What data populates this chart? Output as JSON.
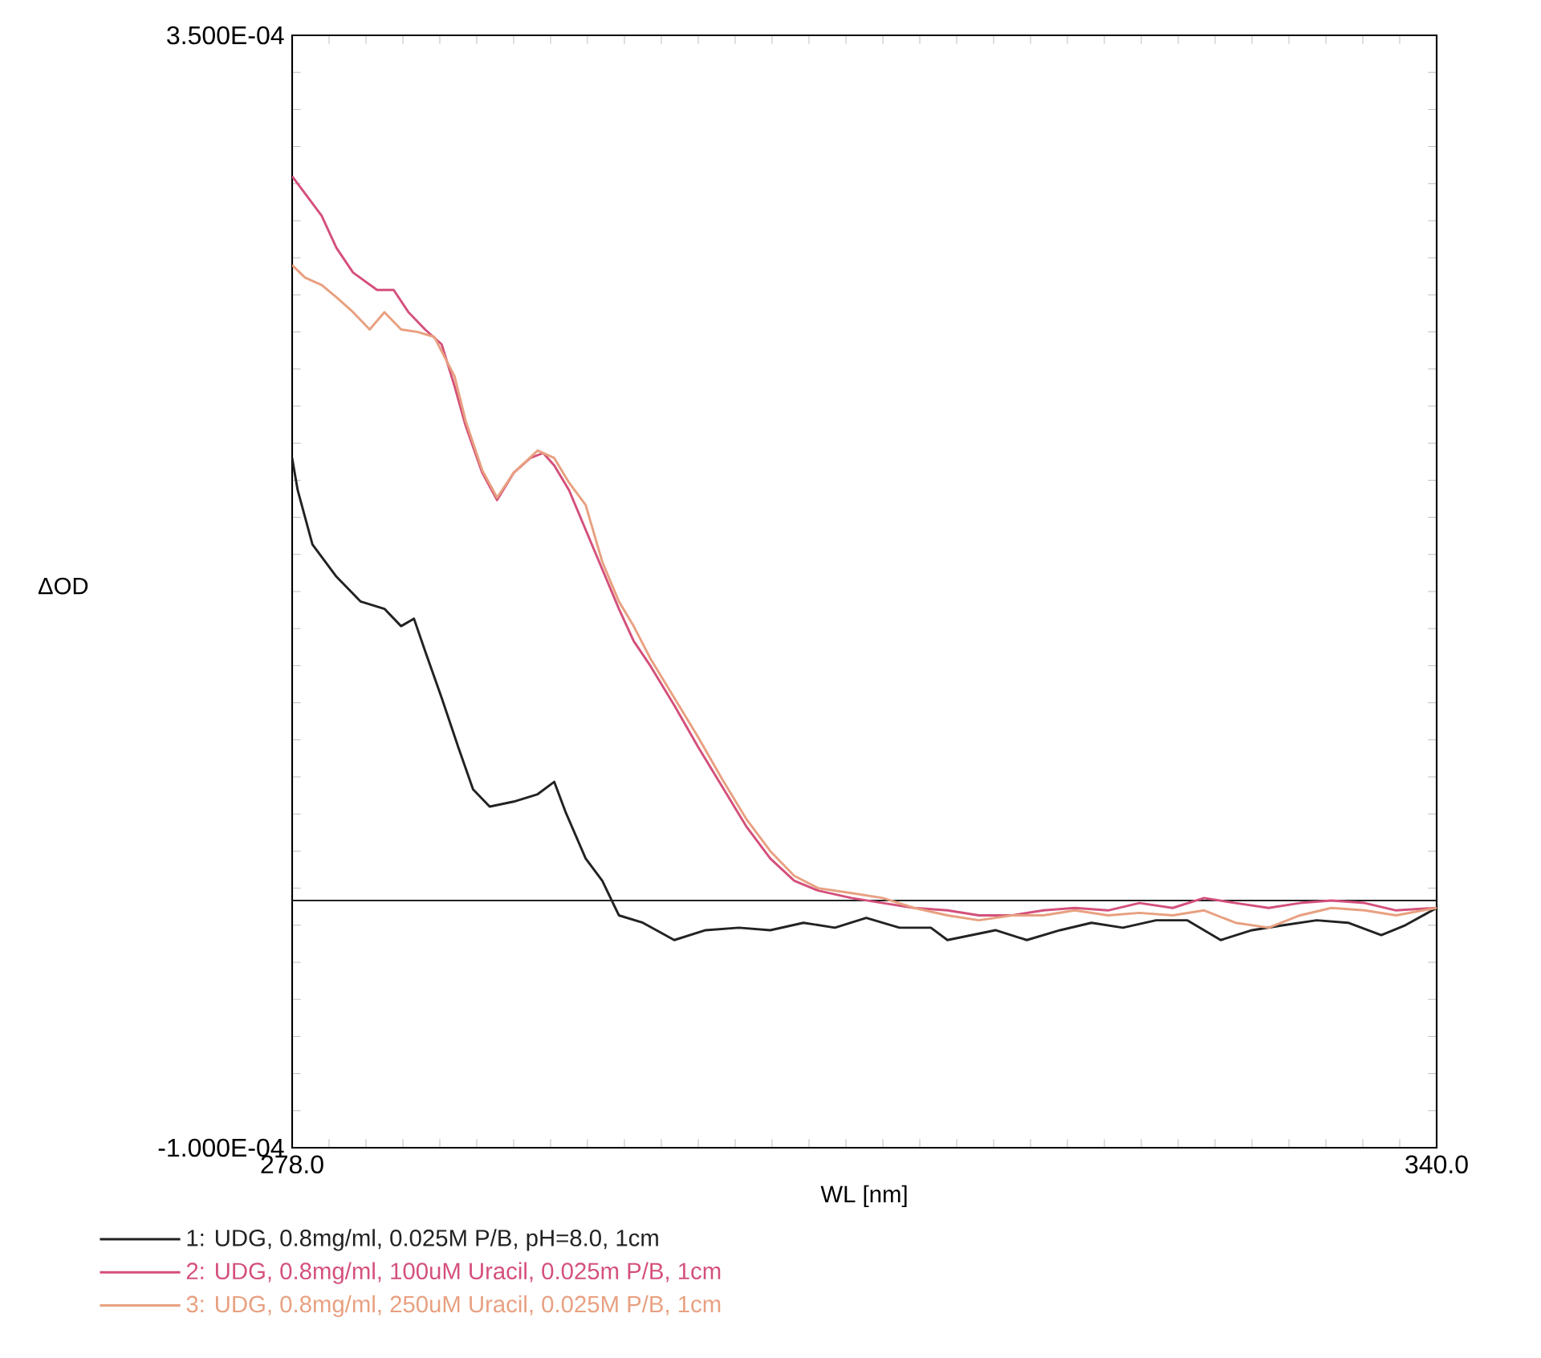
{
  "chart_data": {
    "type": "line",
    "xlabel": "WL [nm]",
    "ylabel": "ΔOD",
    "xlim": [
      278,
      340
    ],
    "ylim": [
      -0.0001,
      0.00035
    ],
    "xticks": [
      {
        "value": 278,
        "label": "278.0"
      },
      {
        "value": 340,
        "label": "340.0"
      }
    ],
    "yticks": [
      {
        "value": -0.0001,
        "label": "-1.000E-04"
      },
      {
        "value": 0.00035,
        "label": "3.500E-04"
      }
    ],
    "legend": "bottom left",
    "ref_lines": [
      {
        "axis": "y",
        "value": 0,
        "color": "#222222"
      }
    ],
    "series": [
      {
        "name": "1: UDG, 0.8mg/ml, 0.025M P/B, pH=8.0, 1cm",
        "color": "#222222",
        "x": [
          278.0,
          278.3,
          279.1,
          280.4,
          281.7,
          283.0,
          283.9,
          284.6,
          285.2,
          286.1,
          287.0,
          287.8,
          288.7,
          290.0,
          291.3,
          292.2,
          292.8,
          293.9,
          294.8,
          295.7,
          297.0,
          298.7,
          300.4,
          302.2,
          303.9,
          305.7,
          307.4,
          309.1,
          310.9,
          312.6,
          313.5,
          316.1,
          317.8,
          319.6,
          321.3,
          323.0,
          324.8,
          326.5,
          328.3,
          330.0,
          331.7,
          333.5,
          335.2,
          337.0,
          338.3,
          340.0
        ],
        "values": [
          0.000179,
          0.000166,
          0.000144,
          0.000131,
          0.000121,
          0.000118,
          0.000111,
          0.000114,
          0.000101,
          8.2e-05,
          6.2e-05,
          4.5e-05,
          3.8e-05,
          4e-05,
          4.3e-05,
          4.8e-05,
          3.6e-05,
          1.7e-05,
          8e-06,
          -6e-06,
          -9e-06,
          -1.6e-05,
          -1.2e-05,
          -1.1e-05,
          -1.2e-05,
          -9e-06,
          -1.1e-05,
          -7e-06,
          -1.1e-05,
          -1.1e-05,
          -1.6e-05,
          -1.2e-05,
          -1.6e-05,
          -1.2e-05,
          -9e-06,
          -1.1e-05,
          -8e-06,
          -8e-06,
          -1.6e-05,
          -1.2e-05,
          -1e-05,
          -8e-06,
          -9e-06,
          -1.4e-05,
          -1e-05,
          -3e-06
        ]
      },
      {
        "name": "2: UDG, 0.8mg/ml, 100uM Uracil, 0.025m P/B, 1cm",
        "color": "#d4507a",
        "x": [
          278.0,
          278.7,
          279.6,
          280.4,
          281.3,
          282.6,
          283.5,
          284.3,
          285.2,
          286.1,
          286.8,
          287.4,
          288.3,
          289.1,
          290.0,
          290.9,
          291.6,
          292.2,
          293.0,
          293.9,
          294.8,
          295.7,
          296.5,
          297.4,
          298.7,
          300.0,
          301.3,
          302.6,
          303.9,
          305.2,
          306.5,
          308.3,
          310.0,
          311.7,
          313.5,
          315.2,
          317.0,
          318.7,
          320.4,
          322.2,
          323.9,
          325.7,
          327.4,
          329.1,
          330.9,
          332.6,
          334.3,
          336.1,
          337.8,
          340.0
        ],
        "values": [
          0.000293,
          0.000286,
          0.000277,
          0.000264,
          0.000254,
          0.000247,
          0.000247,
          0.000238,
          0.000231,
          0.000225,
          0.000208,
          0.000192,
          0.000173,
          0.000162,
          0.000173,
          0.000179,
          0.000181,
          0.000176,
          0.000166,
          0.00015,
          0.000134,
          0.000118,
          0.000105,
          9.5e-05,
          7.9e-05,
          6.2e-05,
          4.6e-05,
          3e-05,
          1.7e-05,
          8e-06,
          4e-06,
          1e-06,
          -1e-06,
          -3e-06,
          -4e-06,
          -6e-06,
          -6e-06,
          -4e-06,
          -3e-06,
          -4e-06,
          -1e-06,
          -3e-06,
          1e-06,
          -1e-06,
          -3e-06,
          -1e-06,
          0.0,
          -1e-06,
          -4e-06,
          -3e-06
        ]
      },
      {
        "name": "3: UDG, 0.8mg/ml, 250uM Uracil, 0.025M P/B, 1cm",
        "color": "#e8a080",
        "x": [
          278.0,
          278.7,
          279.6,
          280.4,
          281.3,
          282.2,
          283.0,
          283.9,
          284.8,
          285.7,
          286.8,
          287.4,
          288.3,
          289.1,
          290.0,
          291.3,
          292.2,
          293.0,
          293.9,
          294.8,
          295.7,
          296.5,
          297.4,
          298.7,
          300.0,
          301.3,
          302.6,
          303.9,
          305.2,
          306.5,
          308.3,
          310.0,
          311.7,
          313.5,
          315.2,
          317.0,
          318.7,
          320.4,
          322.2,
          323.9,
          325.7,
          327.4,
          329.1,
          330.9,
          332.6,
          334.3,
          336.1,
          337.8,
          340.0
        ],
        "values": [
          0.000257,
          0.000252,
          0.000249,
          0.000244,
          0.000238,
          0.000231,
          0.000238,
          0.000231,
          0.00023,
          0.000228,
          0.000212,
          0.000194,
          0.000174,
          0.000163,
          0.000173,
          0.000182,
          0.000179,
          0.000169,
          0.00016,
          0.000137,
          0.000121,
          0.000111,
          9.8e-05,
          8.2e-05,
          6.6e-05,
          4.9e-05,
          3.3e-05,
          2e-05,
          1e-05,
          5e-06,
          3e-06,
          1e-06,
          -3e-06,
          -6e-06,
          -8e-06,
          -6e-06,
          -6e-06,
          -4e-06,
          -6e-06,
          -5e-06,
          -6e-06,
          -4e-06,
          -9e-06,
          -1.1e-05,
          -6e-06,
          -3e-06,
          -4e-06,
          -6e-06,
          -3e-06
        ]
      }
    ]
  }
}
